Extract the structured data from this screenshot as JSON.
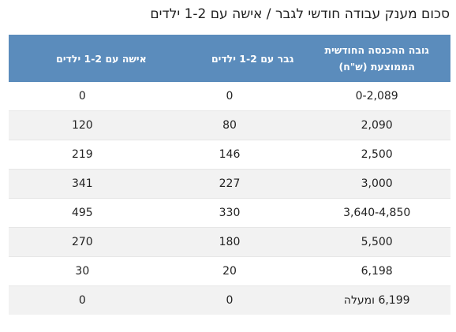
{
  "title": "סכום מענק עבודה חודשי לגבר / אישה עם 1-2 ילדים",
  "table": {
    "headers": {
      "income": "גובה ההכנסה החודשית הממוצעת (ש\"ח)",
      "man": "גבר עם 1-2 ילדים",
      "woman": "אישה עם 1-2 ילדים"
    },
    "rows": [
      {
        "income": "0-2,089",
        "man": "0",
        "woman": "0"
      },
      {
        "income": "2,090",
        "man": "80",
        "woman": "120"
      },
      {
        "income": "2,500",
        "man": "146",
        "woman": "219"
      },
      {
        "income": "3,000",
        "man": "227",
        "woman": "341"
      },
      {
        "income": "3,640-4,850",
        "man": "330",
        "woman": "495"
      },
      {
        "income": "5,500",
        "man": "180",
        "woman": "270"
      },
      {
        "income": "6,198",
        "man": "20",
        "woman": "30"
      },
      {
        "income": "6,199 ומעלה",
        "man": "0",
        "woman": "0"
      }
    ]
  },
  "colors": {
    "header_bg": "#5b8cbc",
    "stripe_bg": "#f2f2f2"
  }
}
